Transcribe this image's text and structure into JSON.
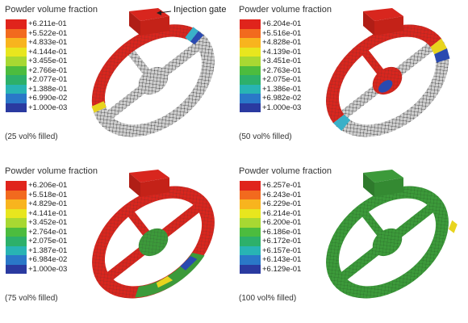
{
  "panels": [
    {
      "title": "Powder volume fraction",
      "legend": [
        "+6.211e-01",
        "+5.522e-01",
        "+4.833e-01",
        "+4.144e-01",
        "+3.455e-01",
        "+2.766e-01",
        "+2.077e-01",
        "+1.388e-01",
        "+6.990e-02",
        "+1.000e-03"
      ],
      "caption": "(25 vol% filled)",
      "annotation": "Injection gate"
    },
    {
      "title": "Powder volume fraction",
      "legend": [
        "+6.204e-01",
        "+5.516e-01",
        "+4.828e-01",
        "+4.139e-01",
        "+3.451e-01",
        "+2.763e-01",
        "+2.075e-01",
        "+1.386e-01",
        "+6.982e-02",
        "+1.000e-03"
      ],
      "caption": "(50 vol% filled)"
    },
    {
      "title": "Powder volume fraction",
      "legend": [
        "+6.206e-01",
        "+5.518e-01",
        "+4.829e-01",
        "+4.141e-01",
        "+3.452e-01",
        "+2.764e-01",
        "+2.075e-01",
        "+1.387e-01",
        "+6.984e-02",
        "+1.000e-03"
      ],
      "caption": "(75 vol% filled)"
    },
    {
      "title": "Powder volume fraction",
      "legend": [
        "+6.257e-01",
        "+6.243e-01",
        "+6.229e-01",
        "+6.214e-01",
        "+6.200e-01",
        "+6.186e-01",
        "+6.172e-01",
        "+6.157e-01",
        "+6.143e-01",
        "+6.129e-01"
      ],
      "caption": "(100 vol% filled)"
    }
  ],
  "legend_colors": [
    "#e0241c",
    "#f26a1e",
    "#f8b41e",
    "#e8e61e",
    "#a8d832",
    "#4cbc3e",
    "#2db06a",
    "#28b4b4",
    "#2a78c8",
    "#2a3aa0"
  ],
  "fill_colors": {
    "filled": "#d8261e",
    "empty": "#cfcfcf",
    "mesh_dark": "#2a2a2a",
    "green": "#3c9a3a",
    "flow_front_yellow": "#e8d41e",
    "flow_front_cyan": "#3ab0c8",
    "flow_front_blue": "#2a4ab0"
  }
}
